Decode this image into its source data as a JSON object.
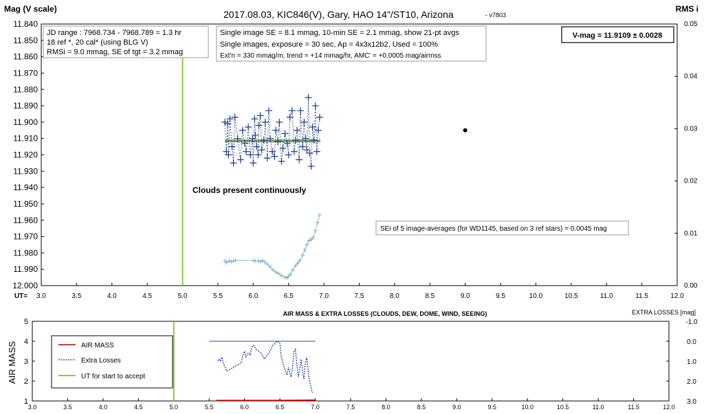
{
  "chart_data": [
    {
      "type": "scatter",
      "title": "2017.08.03,  KIC846(V),  Gary,  HAO 14\"/ST10, Arizona",
      "version": "- v7803",
      "ylabel_left": "Mag (V scale)",
      "ylabel_right": "RMS i",
      "xlabel": "UT=",
      "xlim": [
        3.0,
        12.0
      ],
      "ylim": [
        11.84,
        12.0
      ],
      "y2lim": [
        0.0,
        0.05
      ],
      "x_ticks": [
        "3.0",
        "3.5",
        "4.0",
        "4.5",
        "5.0",
        "5.5",
        "6.0",
        "6.5",
        "7.0",
        "7.5",
        "8.0",
        "8.5",
        "9.0",
        "9.5",
        "10.0",
        "10.5",
        "11.0",
        "11.5",
        "12.0"
      ],
      "y_ticks": [
        "11.840",
        "11.850",
        "11.860",
        "11.870",
        "11.880",
        "11.890",
        "11.900",
        "11.910",
        "11.920",
        "11.930",
        "11.940",
        "11.950",
        "11.960",
        "11.970",
        "11.980",
        "11.990",
        "12.000"
      ],
      "y2_ticks": [
        "0.05",
        "0.04",
        "0.03",
        "0.02",
        "0.01",
        "0.00"
      ],
      "info_box_1": [
        "JD range : 7968.734 - 7968.789 = 1.3 hr",
        "18 ref *, 20 cal* (using BLG V)",
        "RMSi = 9.0 mmag, SE of tgt = 3.2 mmag"
      ],
      "info_box_2": [
        "Single image SE = 8.1 mmag, 10-min SE = 2.1 mmag, show 21-pt avgs",
        "Single images, exposure = 30 sec, Ap = 4x3x12b2, Used = 100%",
        "Ext'n = 330 mmag/m, trend = +14 mmag/hr, AMC' = +0.0005 mag/airmss"
      ],
      "vmag_box": "V-mag = 11.9109 ± 0.0028",
      "clouds_label": "Clouds  present continuously",
      "sei_label": "SEi of 5 image-averages (for WD1145, based on 3 ref stars) = 0.0045 mag",
      "start_ut": 5.0,
      "mean_mag": 11.9115,
      "avg_range": [
        5.6,
        6.95
      ],
      "marker_point": {
        "x": 9.0,
        "y": 11.905
      },
      "series": [
        {
          "kind": "mag",
          "x": [
            5.6,
            5.62,
            5.64,
            5.65,
            5.67,
            5.7,
            5.72,
            5.74,
            5.78,
            5.82,
            5.85,
            5.88,
            5.9,
            5.93,
            5.96,
            5.99,
            6.0,
            6.02,
            6.03,
            6.05,
            6.07,
            6.08,
            6.1,
            6.12,
            6.15,
            6.17,
            6.2,
            6.22,
            6.24,
            6.27,
            6.3,
            6.32,
            6.35,
            6.37,
            6.4,
            6.42,
            6.45,
            6.48,
            6.5,
            6.52,
            6.55,
            6.58,
            6.6,
            6.62,
            6.65,
            6.67,
            6.7,
            6.72,
            6.74,
            6.76,
            6.78,
            6.8,
            6.82,
            6.84,
            6.86,
            6.88,
            6.9,
            6.92,
            6.94
          ],
          "y": [
            11.9,
            11.918,
            11.901,
            11.92,
            11.898,
            11.915,
            11.925,
            11.897,
            11.91,
            11.923,
            11.905,
            11.913,
            11.918,
            11.903,
            11.92,
            11.91,
            11.925,
            11.898,
            11.908,
            11.915,
            11.92,
            11.902,
            11.896,
            11.917,
            11.911,
            11.9,
            11.922,
            11.893,
            11.91,
            11.918,
            11.921,
            11.905,
            11.912,
            11.9,
            11.924,
            11.916,
            11.907,
            11.913,
            11.92,
            11.897,
            11.893,
            11.918,
            11.911,
            11.905,
            11.923,
            11.893,
            11.915,
            11.9,
            11.91,
            11.917,
            11.885,
            11.919,
            11.927,
            11.903,
            11.911,
            11.89,
            11.918,
            11.905,
            11.897
          ]
        },
        {
          "kind": "rmsi",
          "x": [
            5.6,
            5.62,
            5.66,
            5.69,
            5.72,
            5.75,
            6.0,
            6.03,
            6.07,
            6.1,
            6.13,
            6.16,
            6.2,
            6.24,
            6.28,
            6.32,
            6.36,
            6.4,
            6.45,
            6.48,
            6.5,
            6.53,
            6.56,
            6.6,
            6.63,
            6.66,
            6.7,
            6.73,
            6.76,
            6.79,
            6.82,
            6.85,
            6.88,
            6.91,
            6.94
          ],
          "y": [
            0.0047,
            0.0044,
            0.0047,
            0.0046,
            0.0047,
            0.0048,
            0.0048,
            0.0047,
            0.0047,
            0.0046,
            0.0048,
            0.0045,
            0.0041,
            0.0036,
            0.003,
            0.0026,
            0.0023,
            0.0019,
            0.0016,
            0.0015,
            0.0018,
            0.0022,
            0.003,
            0.0038,
            0.0043,
            0.0048,
            0.0058,
            0.0068,
            0.0078,
            0.0086,
            0.0088,
            0.0092,
            0.0105,
            0.012,
            0.0135
          ]
        }
      ]
    },
    {
      "type": "line",
      "title": "AIR MASS & EXTRA LOSSES (CLOUDS, DEW, DOME, WIND, SEEING)",
      "ylabel_left": "AIR MASS",
      "ylabel_right": "EXTRA LOSSES [mag]",
      "xlim": [
        3.0,
        12.0
      ],
      "ylim": [
        1,
        5
      ],
      "y2lim": [
        3.0,
        -1.0
      ],
      "x_ticks": [
        "3.0",
        "3.5",
        "4.0",
        "4.5",
        "5.0",
        "5.5",
        "6.0",
        "6.5",
        "7.0",
        "7.5",
        "8.0",
        "8.5",
        "9.0",
        "9.5",
        "10.0",
        "10.5",
        "11.0",
        "11.5",
        "12.0"
      ],
      "y_ticks": [
        "5",
        "4",
        "3",
        "2",
        "1"
      ],
      "y2_ticks": [
        "-1.0",
        "0.0",
        "1.0",
        "2.0",
        "3.0"
      ],
      "legend": [
        "AIR MASS",
        "Extra Losses",
        "UT for start to accept"
      ],
      "start_ut": 5.0,
      "zero_line": {
        "x": [
          5.5,
          7.0
        ],
        "y2": 0.0
      },
      "series": [
        {
          "name": "AIR MASS",
          "x": [
            5.6,
            6.0,
            6.4,
            6.8,
            7.0
          ],
          "y": [
            1.02,
            1.02,
            1.02,
            1.03,
            1.04
          ]
        },
        {
          "name": "Extra Losses",
          "x": [
            5.62,
            5.64,
            5.66,
            5.68,
            5.7,
            5.75,
            5.8,
            5.85,
            5.9,
            5.95,
            5.98,
            6.0,
            6.02,
            6.05,
            6.08,
            6.1,
            6.13,
            6.16,
            6.2,
            6.24,
            6.28,
            6.32,
            6.36,
            6.4,
            6.43,
            6.46,
            6.48,
            6.5,
            6.52,
            6.55,
            6.58,
            6.6,
            6.62,
            6.64,
            6.66,
            6.68,
            6.7,
            6.72,
            6.74,
            6.76,
            6.78,
            6.8,
            6.82,
            6.84,
            6.86,
            6.88,
            6.9,
            6.92,
            6.94,
            6.96
          ],
          "y2": [
            1.0,
            0.9,
            1.0,
            0.8,
            1.1,
            1.5,
            1.4,
            1.3,
            1.2,
            1.1,
            0.7,
            0.5,
            0.8,
            0.6,
            0.7,
            0.3,
            0.2,
            0.4,
            0.5,
            0.6,
            0.9,
            0.7,
            0.5,
            0.2,
            0.1,
            0.0,
            0.05,
            0.1,
            0.8,
            1.2,
            1.5,
            1.7,
            1.3,
            1.6,
            1.8,
            1.2,
            0.5,
            0.4,
            1.2,
            1.8,
            1.4,
            0.9,
            1.5,
            1.9,
            1.1,
            0.8,
            1.5,
            2.0,
            2.3,
            2.6
          ]
        }
      ]
    }
  ]
}
